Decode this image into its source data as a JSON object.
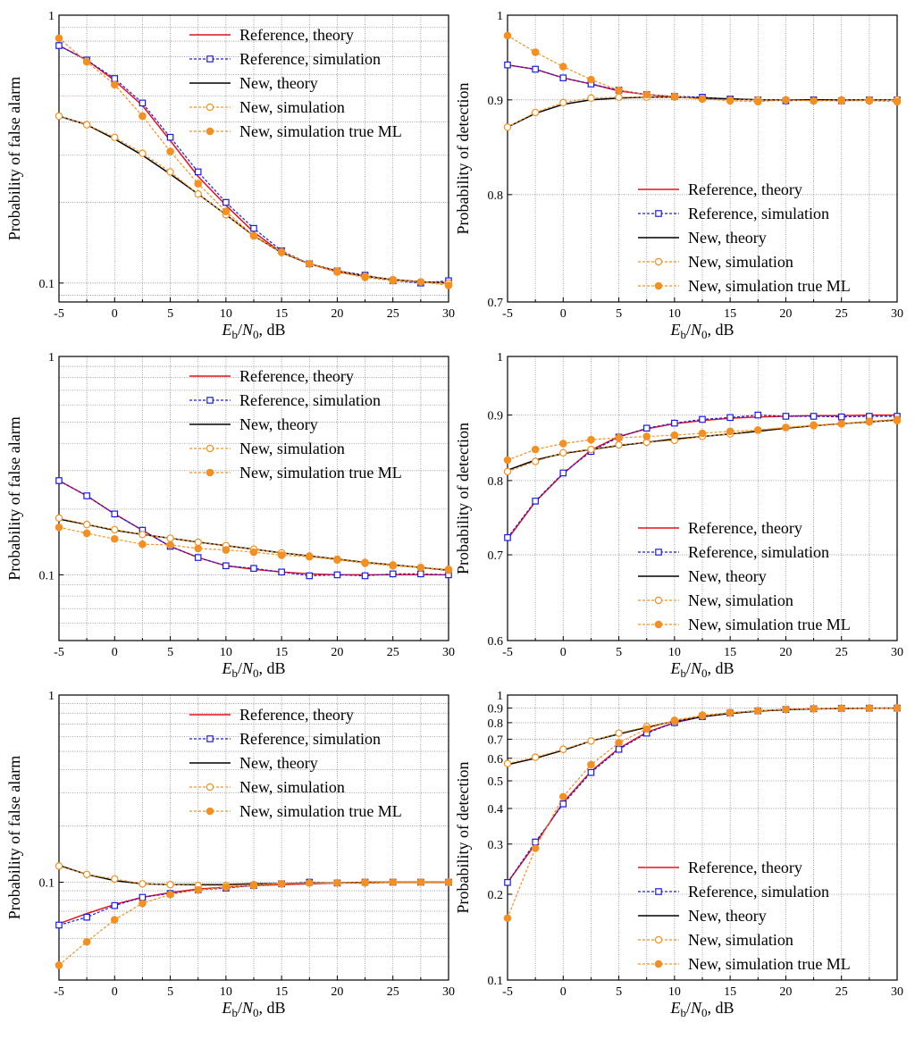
{
  "colors": {
    "ref_theory": "#e8111b",
    "ref_sim": "#1a1ae6",
    "new_theory": "#000000",
    "new_sim": "#f39021",
    "grid": "#8c8c8c",
    "axis": "#000000"
  },
  "chart_data": [
    {
      "type": "line",
      "scale": "log",
      "row": 0,
      "col": 0,
      "ylabel": "Probability of false alarm",
      "xlabel": "E_b/N_0, dB",
      "xlim": [
        -5,
        30
      ],
      "ylim": [
        0.085,
        1
      ],
      "ytick_labels": [
        {
          "v": 1,
          "label": "1"
        },
        {
          "v": 0.1,
          "label": "0.1"
        }
      ],
      "legend_loc": "top-right",
      "x": [
        -5,
        -2.5,
        0,
        2.5,
        5,
        7.5,
        10,
        12.5,
        15,
        17.5,
        20,
        22.5,
        25,
        27.5,
        30
      ],
      "series": [
        {
          "name": "Reference, theory",
          "style": "ref_theory",
          "values": [
            0.77,
            0.68,
            0.57,
            0.46,
            0.34,
            0.25,
            0.195,
            0.155,
            0.13,
            0.118,
            0.11,
            0.106,
            0.103,
            0.101,
            0.1
          ]
        },
        {
          "name": "Reference, simulation",
          "style": "ref_sim",
          "values": [
            0.77,
            0.68,
            0.58,
            0.47,
            0.35,
            0.26,
            0.2,
            0.16,
            0.132,
            0.118,
            0.111,
            0.107,
            0.102,
            0.1,
            0.102
          ]
        },
        {
          "name": "New, theory",
          "style": "new_theory",
          "values": [
            0.42,
            0.39,
            0.345,
            0.3,
            0.255,
            0.215,
            0.18,
            0.15,
            0.13,
            0.118,
            0.111,
            0.106,
            0.103,
            0.101,
            0.1
          ]
        },
        {
          "name": "New, simulation",
          "style": "new_sim",
          "values": [
            0.42,
            0.39,
            0.35,
            0.305,
            0.26,
            0.215,
            0.18,
            0.15,
            0.13,
            0.118,
            0.111,
            0.106,
            0.103,
            0.101,
            0.1
          ]
        },
        {
          "name": "New, simulation true ML",
          "style": "new_ml",
          "values": [
            0.82,
            0.67,
            0.55,
            0.42,
            0.31,
            0.235,
            0.185,
            0.15,
            0.131,
            0.118,
            0.11,
            0.105,
            0.102,
            0.101,
            0.098
          ]
        }
      ]
    },
    {
      "type": "line",
      "scale": "log",
      "row": 0,
      "col": 1,
      "ylabel": "Probability of detection",
      "xlabel": "E_b/N_0, dB",
      "xlim": [
        -5,
        30
      ],
      "ylim": [
        0.7,
        1
      ],
      "ytick_labels": [
        {
          "v": 1,
          "label": "1"
        },
        {
          "v": 0.9,
          "label": "0.9"
        },
        {
          "v": 0.8,
          "label": "0.8"
        },
        {
          "v": 0.7,
          "label": "0.7"
        }
      ],
      "legend_loc": "lower-right",
      "x": [
        -5,
        -2.5,
        0,
        2.5,
        5,
        7.5,
        10,
        12.5,
        15,
        17.5,
        20,
        22.5,
        25,
        27.5,
        30
      ],
      "series": [
        {
          "name": "Reference, theory",
          "style": "ref_theory",
          "values": [
            0.94,
            0.935,
            0.925,
            0.918,
            0.91,
            0.906,
            0.903,
            0.902,
            0.901,
            0.9,
            0.9,
            0.9,
            0.9,
            0.9,
            0.9
          ]
        },
        {
          "name": "Reference, simulation",
          "style": "ref_sim",
          "values": [
            0.94,
            0.935,
            0.925,
            0.918,
            0.911,
            0.906,
            0.904,
            0.903,
            0.901,
            0.9,
            0.899,
            0.9,
            0.899,
            0.9,
            0.9
          ]
        },
        {
          "name": "New, theory",
          "style": "new_theory",
          "values": [
            0.87,
            0.885,
            0.895,
            0.9,
            0.902,
            0.903,
            0.903,
            0.902,
            0.901,
            0.9,
            0.9,
            0.9,
            0.9,
            0.9,
            0.9
          ]
        },
        {
          "name": "New, simulation",
          "style": "new_sim",
          "values": [
            0.87,
            0.886,
            0.897,
            0.902,
            0.903,
            0.903,
            0.903,
            0.901,
            0.9,
            0.9,
            0.9,
            0.899,
            0.9,
            0.9,
            0.9
          ]
        },
        {
          "name": "New, simulation true ML",
          "style": "new_ml",
          "values": [
            0.975,
            0.955,
            0.938,
            0.923,
            0.911,
            0.906,
            0.904,
            0.901,
            0.899,
            0.898,
            0.9,
            0.899,
            0.899,
            0.899,
            0.898
          ]
        }
      ]
    },
    {
      "type": "line",
      "scale": "log",
      "row": 1,
      "col": 0,
      "ylabel": "Probability of false alarm",
      "xlabel": "E_b/N_0, dB",
      "xlim": [
        -5,
        30
      ],
      "ylim": [
        0.05,
        1
      ],
      "ytick_labels": [
        {
          "v": 1,
          "label": "1"
        },
        {
          "v": 0.1,
          "label": "0.1"
        }
      ],
      "legend_loc": "top-right",
      "x": [
        -5,
        -2.5,
        0,
        2.5,
        5,
        7.5,
        10,
        12.5,
        15,
        17.5,
        20,
        22.5,
        25,
        27.5,
        30
      ],
      "series": [
        {
          "name": "Reference, theory",
          "style": "ref_theory",
          "values": [
            0.27,
            0.23,
            0.19,
            0.16,
            0.135,
            0.12,
            0.11,
            0.106,
            0.103,
            0.101,
            0.1,
            0.1,
            0.1,
            0.1,
            0.1
          ]
        },
        {
          "name": "Reference, simulation",
          "style": "ref_sim",
          "values": [
            0.27,
            0.23,
            0.19,
            0.16,
            0.135,
            0.12,
            0.11,
            0.107,
            0.103,
            0.099,
            0.1,
            0.099,
            0.101,
            0.101,
            0.1
          ]
        },
        {
          "name": "New, theory",
          "style": "new_theory",
          "values": [
            0.18,
            0.17,
            0.16,
            0.153,
            0.147,
            0.141,
            0.136,
            0.131,
            0.126,
            0.122,
            0.118,
            0.114,
            0.111,
            0.108,
            0.105
          ]
        },
        {
          "name": "New, simulation",
          "style": "new_sim",
          "values": [
            0.182,
            0.17,
            0.161,
            0.153,
            0.147,
            0.141,
            0.136,
            0.131,
            0.126,
            0.122,
            0.118,
            0.114,
            0.111,
            0.108,
            0.106
          ]
        },
        {
          "name": "New, simulation true ML",
          "style": "new_ml",
          "values": [
            0.165,
            0.155,
            0.146,
            0.138,
            0.137,
            0.132,
            0.13,
            0.127,
            0.123,
            0.121,
            0.117,
            0.113,
            0.11,
            0.108,
            0.105
          ]
        }
      ]
    },
    {
      "type": "line",
      "scale": "log",
      "row": 1,
      "col": 1,
      "ylabel": "Probability of detection",
      "xlabel": "E_b/N_0, dB",
      "xlim": [
        -5,
        30
      ],
      "ylim": [
        0.6,
        1
      ],
      "ytick_labels": [
        {
          "v": 1,
          "label": "1"
        },
        {
          "v": 0.9,
          "label": "0.9"
        },
        {
          "v": 0.8,
          "label": "0.8"
        },
        {
          "v": 0.7,
          "label": "0.7"
        },
        {
          "v": 0.6,
          "label": "0.6"
        }
      ],
      "legend_loc": "lower-right",
      "x": [
        -5,
        -2.5,
        0,
        2.5,
        5,
        7.5,
        10,
        12.5,
        15,
        17.5,
        20,
        22.5,
        25,
        27.5,
        30
      ],
      "series": [
        {
          "name": "Reference, theory",
          "style": "ref_theory",
          "values": [
            0.72,
            0.77,
            0.81,
            0.845,
            0.866,
            0.878,
            0.886,
            0.891,
            0.895,
            0.897,
            0.898,
            0.899,
            0.899,
            0.9,
            0.9
          ]
        },
        {
          "name": "Reference, simulation",
          "style": "ref_sim",
          "values": [
            0.722,
            0.771,
            0.811,
            0.843,
            0.865,
            0.879,
            0.887,
            0.893,
            0.896,
            0.9,
            0.898,
            0.898,
            0.897,
            0.898,
            0.898
          ]
        },
        {
          "name": "New, theory",
          "style": "new_theory",
          "values": [
            0.815,
            0.83,
            0.84,
            0.846,
            0.852,
            0.857,
            0.862,
            0.866,
            0.87,
            0.874,
            0.879,
            0.883,
            0.886,
            0.889,
            0.892
          ]
        },
        {
          "name": "New, simulation",
          "style": "new_sim",
          "values": [
            0.813,
            0.828,
            0.841,
            0.846,
            0.853,
            0.857,
            0.86,
            0.866,
            0.87,
            0.876,
            0.88,
            0.884,
            0.886,
            0.89,
            0.893
          ]
        },
        {
          "name": "New, simulation true ML",
          "style": "new_ml",
          "values": [
            0.83,
            0.846,
            0.855,
            0.861,
            0.864,
            0.866,
            0.868,
            0.871,
            0.874,
            0.876,
            0.88,
            0.883,
            0.886,
            0.889,
            0.891
          ]
        }
      ]
    },
    {
      "type": "line",
      "scale": "log",
      "row": 2,
      "col": 0,
      "ylabel": "Probability of false alarm",
      "xlabel": "E_b/N_0, dB",
      "xlim": [
        -5,
        30
      ],
      "ylim": [
        0.03,
        1
      ],
      "ytick_labels": [
        {
          "v": 1,
          "label": "1"
        },
        {
          "v": 0.1,
          "label": "0.1"
        }
      ],
      "legend_loc": "top-right",
      "x": [
        -5,
        -2.5,
        0,
        2.5,
        5,
        7.5,
        10,
        12.5,
        15,
        17.5,
        20,
        22.5,
        25,
        27.5,
        30
      ],
      "series": [
        {
          "name": "Reference, theory",
          "style": "ref_theory",
          "values": [
            0.06,
            0.068,
            0.076,
            0.083,
            0.088,
            0.092,
            0.094,
            0.096,
            0.097,
            0.098,
            0.099,
            0.099,
            0.1,
            0.1,
            0.1
          ]
        },
        {
          "name": "Reference, simulation",
          "style": "ref_sim",
          "values": [
            0.059,
            0.065,
            0.075,
            0.083,
            0.087,
            0.091,
            0.093,
            0.096,
            0.098,
            0.1,
            0.099,
            0.1,
            0.1,
            0.1,
            0.1
          ]
        },
        {
          "name": "New, theory",
          "style": "new_theory",
          "values": [
            0.123,
            0.11,
            0.102,
            0.098,
            0.097,
            0.097,
            0.097,
            0.098,
            0.098,
            0.099,
            0.099,
            0.1,
            0.1,
            0.1,
            0.1
          ]
        },
        {
          "name": "New, simulation",
          "style": "new_sim",
          "values": [
            0.122,
            0.11,
            0.104,
            0.098,
            0.097,
            0.096,
            0.096,
            0.097,
            0.098,
            0.099,
            0.099,
            0.099,
            0.1,
            0.1,
            0.1
          ]
        },
        {
          "name": "New, simulation true ML",
          "style": "new_ml",
          "values": [
            0.036,
            0.048,
            0.063,
            0.077,
            0.086,
            0.091,
            0.094,
            0.096,
            0.098,
            0.099,
            0.099,
            0.1,
            0.1,
            0.1,
            0.1
          ]
        }
      ]
    },
    {
      "type": "line",
      "scale": "log",
      "row": 2,
      "col": 1,
      "ylabel": "Probability of detection",
      "xlabel": "E_b/N_0, dB",
      "xlim": [
        -5,
        30
      ],
      "ylim": [
        0.1,
        1
      ],
      "ytick_labels": [
        {
          "v": 1,
          "label": "1"
        },
        {
          "v": 0.9,
          "label": "0.9"
        },
        {
          "v": 0.8,
          "label": "0.8"
        },
        {
          "v": 0.7,
          "label": "0.7"
        },
        {
          "v": 0.6,
          "label": "0.6"
        },
        {
          "v": 0.5,
          "label": "0.5"
        },
        {
          "v": 0.4,
          "label": "0.4"
        },
        {
          "v": 0.3,
          "label": "0.3"
        },
        {
          "v": 0.2,
          "label": "0.2"
        },
        {
          "v": 0.1,
          "label": "0.1"
        }
      ],
      "legend_loc": "lower-right",
      "x": [
        -5,
        -2.5,
        0,
        2.5,
        5,
        7.5,
        10,
        12.5,
        15,
        17.5,
        20,
        22.5,
        25,
        27.5,
        30
      ],
      "series": [
        {
          "name": "Reference, theory",
          "style": "ref_theory",
          "values": [
            0.22,
            0.3,
            0.42,
            0.54,
            0.65,
            0.74,
            0.8,
            0.84,
            0.865,
            0.88,
            0.89,
            0.895,
            0.898,
            0.9,
            0.9
          ]
        },
        {
          "name": "Reference, simulation",
          "style": "ref_sim",
          "values": [
            0.22,
            0.305,
            0.415,
            0.535,
            0.645,
            0.735,
            0.8,
            0.84,
            0.865,
            0.88,
            0.89,
            0.895,
            0.898,
            0.899,
            0.9
          ]
        },
        {
          "name": "New, theory",
          "style": "new_theory",
          "values": [
            0.57,
            0.6,
            0.64,
            0.69,
            0.73,
            0.77,
            0.81,
            0.84,
            0.862,
            0.878,
            0.888,
            0.894,
            0.897,
            0.899,
            0.9
          ]
        },
        {
          "name": "New, simulation",
          "style": "new_sim",
          "values": [
            0.575,
            0.605,
            0.645,
            0.69,
            0.735,
            0.775,
            0.81,
            0.845,
            0.865,
            0.88,
            0.89,
            0.895,
            0.898,
            0.9,
            0.9
          ]
        },
        {
          "name": "New, simulation true ML",
          "style": "new_ml",
          "values": [
            0.165,
            0.29,
            0.44,
            0.57,
            0.68,
            0.76,
            0.815,
            0.85,
            0.868,
            0.881,
            0.89,
            0.895,
            0.898,
            0.899,
            0.9
          ]
        }
      ]
    }
  ]
}
